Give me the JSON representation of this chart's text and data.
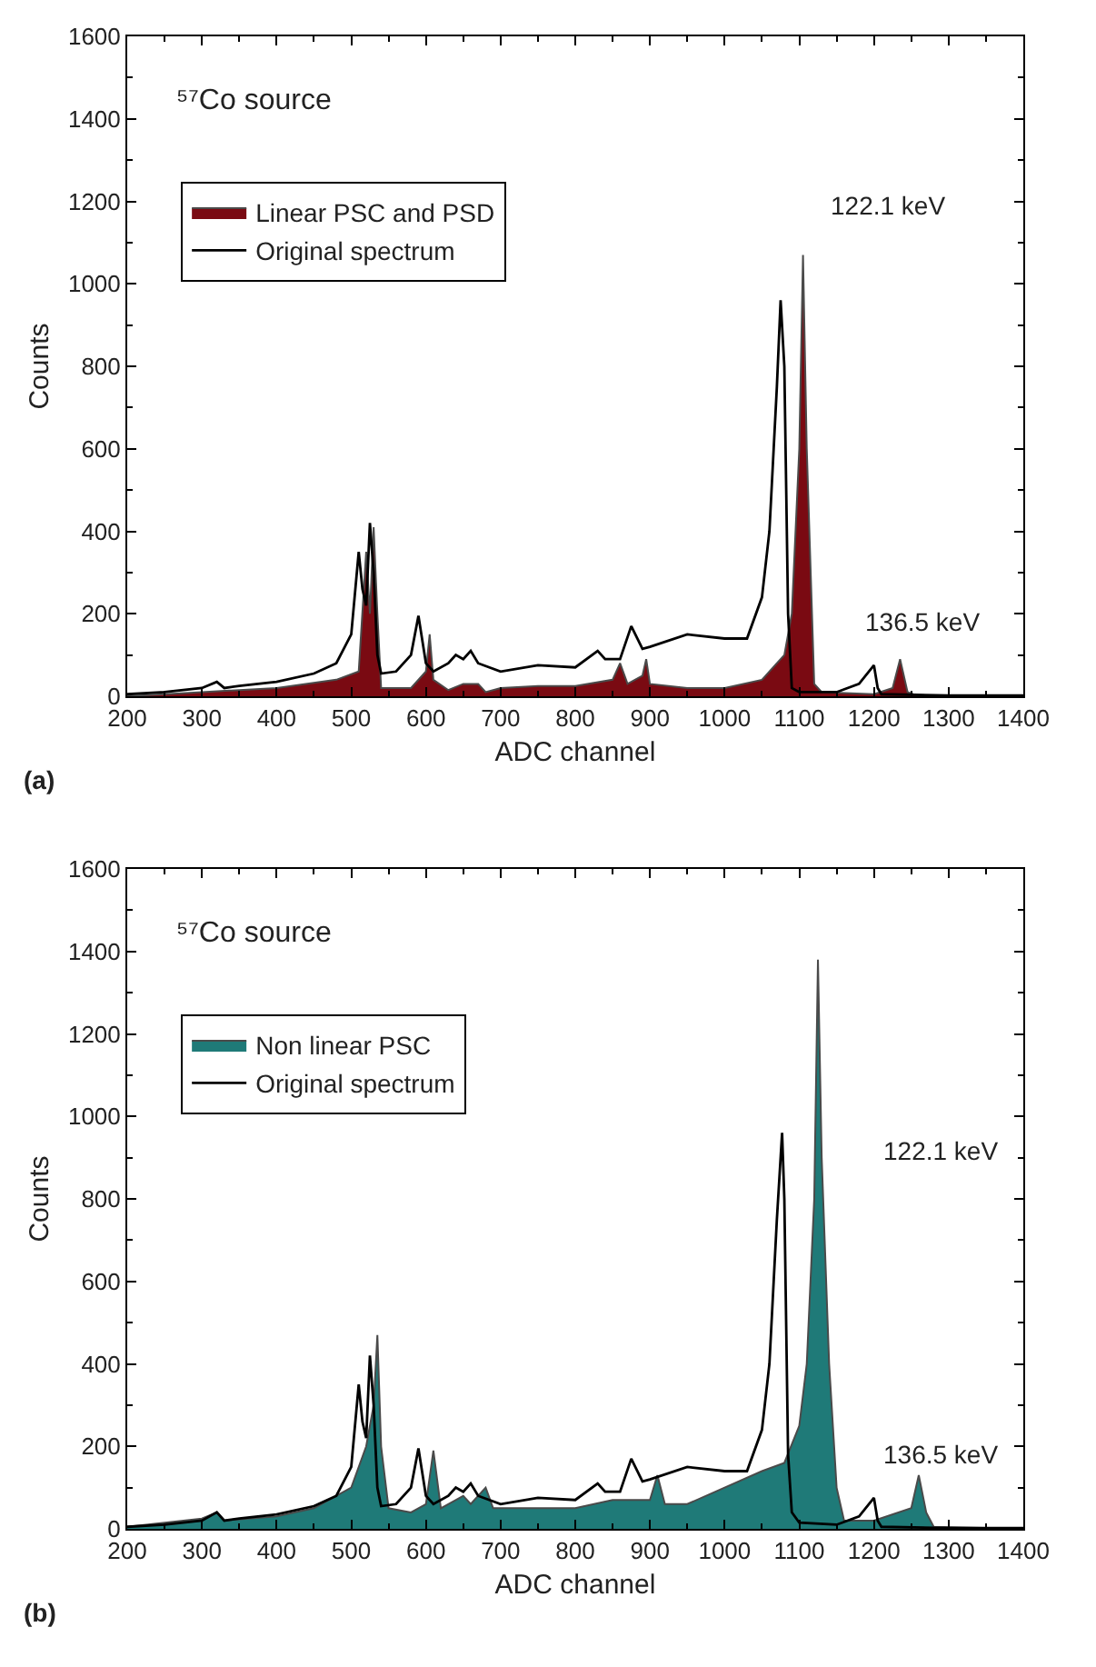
{
  "chart_data": [
    {
      "type": "line",
      "xlabel": "ADC channel",
      "ylabel": "Counts",
      "xlim": [
        200,
        1400
      ],
      "ylim": [
        0,
        1600
      ],
      "xticks": [
        200,
        300,
        400,
        500,
        600,
        700,
        800,
        900,
        1000,
        1100,
        1200,
        1300,
        1400
      ],
      "yticks": [
        0,
        200,
        400,
        600,
        800,
        1000,
        1200,
        1400,
        1600
      ],
      "grid": false,
      "legend": "top left",
      "marker": "none",
      "line_style": "solid",
      "annotations": [
        "(a)",
        "⁵⁷Co source",
        "122.1 keV",
        "136.5 keV"
      ],
      "series": [
        {
          "name": "Linear PSC and PSD",
          "type": "area",
          "color": "#7a0a12",
          "x": [
            200,
            300,
            400,
            480,
            510,
            520,
            525,
            530,
            535,
            540,
            580,
            600,
            605,
            610,
            630,
            650,
            670,
            680,
            700,
            750,
            800,
            850,
            860,
            870,
            890,
            895,
            900,
            950,
            1000,
            1050,
            1070,
            1080,
            1090,
            1100,
            1105,
            1110,
            1120,
            1130,
            1200,
            1225,
            1235,
            1245,
            1260,
            1400
          ],
          "values": [
            0,
            10,
            20,
            40,
            60,
            350,
            200,
            410,
            200,
            20,
            20,
            60,
            150,
            40,
            15,
            30,
            30,
            10,
            20,
            25,
            25,
            40,
            80,
            30,
            50,
            90,
            30,
            20,
            20,
            40,
            80,
            100,
            200,
            600,
            1070,
            600,
            30,
            10,
            5,
            20,
            90,
            10,
            0,
            0
          ]
        },
        {
          "name": "Original spectrum",
          "type": "line",
          "color": "#000000",
          "x": [
            200,
            250,
            300,
            320,
            330,
            350,
            400,
            450,
            480,
            500,
            510,
            515,
            520,
            525,
            530,
            535,
            540,
            560,
            580,
            590,
            600,
            610,
            630,
            640,
            650,
            660,
            670,
            700,
            750,
            800,
            830,
            840,
            860,
            875,
            890,
            900,
            950,
            1000,
            1030,
            1050,
            1060,
            1070,
            1075,
            1080,
            1085,
            1090,
            1100,
            1150,
            1180,
            1200,
            1205,
            1210,
            1300,
            1400
          ],
          "values": [
            5,
            10,
            20,
            35,
            20,
            25,
            35,
            55,
            80,
            150,
            350,
            260,
            220,
            420,
            300,
            100,
            55,
            60,
            100,
            195,
            80,
            60,
            80,
            100,
            90,
            110,
            80,
            60,
            75,
            70,
            110,
            90,
            90,
            170,
            115,
            120,
            150,
            140,
            140,
            240,
            400,
            750,
            960,
            800,
            200,
            20,
            10,
            10,
            30,
            75,
            20,
            5,
            2,
            2
          ]
        }
      ]
    },
    {
      "type": "line",
      "xlabel": "ADC channel",
      "ylabel": "Counts",
      "xlim": [
        200,
        1400
      ],
      "ylim": [
        0,
        1600
      ],
      "xticks": [
        200,
        300,
        400,
        500,
        600,
        700,
        800,
        900,
        1000,
        1100,
        1200,
        1300,
        1400
      ],
      "yticks": [
        0,
        200,
        400,
        600,
        800,
        1000,
        1200,
        1400,
        1600
      ],
      "grid": false,
      "legend": "top left",
      "marker": "none",
      "line_style": "solid",
      "annotations": [
        "(b)",
        "⁵⁷Co source",
        "122.1 keV",
        "136.5 keV"
      ],
      "series": [
        {
          "name": "Non linear PSC",
          "type": "area",
          "color": "#1f7a78",
          "x": [
            200,
            300,
            320,
            330,
            400,
            450,
            500,
            520,
            530,
            535,
            540,
            550,
            580,
            600,
            610,
            620,
            650,
            660,
            680,
            690,
            700,
            800,
            850,
            900,
            910,
            920,
            950,
            1000,
            1050,
            1080,
            1100,
            1110,
            1120,
            1125,
            1130,
            1140,
            1150,
            1160,
            1200,
            1250,
            1260,
            1270,
            1280,
            1400
          ],
          "values": [
            5,
            25,
            40,
            20,
            30,
            50,
            100,
            200,
            300,
            470,
            200,
            50,
            40,
            60,
            190,
            50,
            80,
            60,
            100,
            50,
            50,
            50,
            70,
            70,
            130,
            60,
            60,
            100,
            140,
            160,
            250,
            400,
            800,
            1380,
            900,
            400,
            100,
            20,
            20,
            50,
            130,
            40,
            5,
            0
          ]
        },
        {
          "name": "Original spectrum",
          "type": "line",
          "color": "#000000",
          "x": [
            200,
            250,
            300,
            320,
            330,
            350,
            400,
            450,
            480,
            500,
            510,
            515,
            520,
            525,
            530,
            535,
            540,
            560,
            580,
            590,
            600,
            610,
            630,
            640,
            650,
            660,
            670,
            700,
            750,
            800,
            830,
            840,
            860,
            875,
            890,
            900,
            950,
            1000,
            1030,
            1050,
            1060,
            1070,
            1077,
            1080,
            1085,
            1090,
            1100,
            1150,
            1180,
            1200,
            1205,
            1210,
            1300,
            1400
          ],
          "values": [
            5,
            10,
            20,
            40,
            20,
            25,
            35,
            55,
            80,
            150,
            350,
            260,
            220,
            420,
            300,
            100,
            55,
            60,
            100,
            195,
            80,
            60,
            80,
            100,
            90,
            110,
            80,
            60,
            75,
            70,
            110,
            90,
            90,
            170,
            115,
            120,
            150,
            140,
            140,
            240,
            400,
            750,
            960,
            800,
            180,
            40,
            15,
            10,
            30,
            75,
            20,
            5,
            2,
            2
          ]
        }
      ]
    }
  ]
}
